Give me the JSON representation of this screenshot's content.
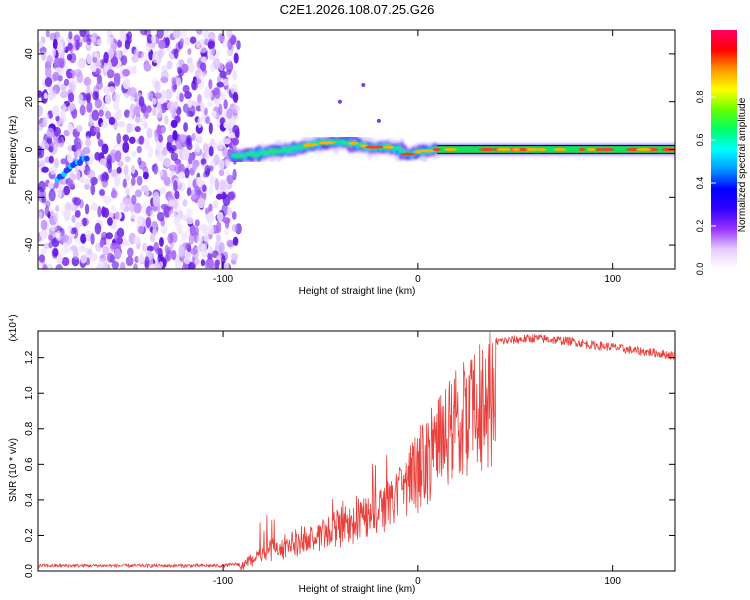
{
  "title": "C2E1.2026.108.07.25.G26",
  "chart_data": [
    {
      "type": "heatmap",
      "xlabel": "Height of straight line (km)",
      "ylabel": "Frequency (Hz)",
      "xlim": [
        -195,
        132
      ],
      "ylim": [
        -50,
        50
      ],
      "xticks": [
        -100,
        0,
        100
      ],
      "yticks": [
        -40,
        -20,
        0,
        20,
        40
      ],
      "colorbar": {
        "label": "Normalized spectral amplitude",
        "range": [
          0,
          1
        ],
        "ticks": [
          "0.0",
          "0.2",
          "0.4",
          "0.6",
          "0.8"
        ],
        "colors": [
          "#ffffff",
          "#e6ccff",
          "#9933ff",
          "#3300ff",
          "#0000ff",
          "#0099ff",
          "#00ffff",
          "#00ff66",
          "#66ff00",
          "#ffff00",
          "#ff9900",
          "#ff0000",
          "#ff0066"
        ]
      },
      "noise_region_x": [
        -195,
        -92
      ],
      "signal_track": {
        "x": [
          -95,
          -85,
          -75,
          -65,
          -55,
          -45,
          -35,
          -25,
          -15,
          -10,
          -5,
          0,
          10,
          20,
          40,
          60,
          80,
          100,
          132
        ],
        "y": [
          -3,
          -2,
          -1,
          0,
          2,
          3,
          3,
          1,
          1,
          0,
          -2,
          -1,
          0,
          0,
          0,
          0,
          0,
          0,
          0
        ]
      },
      "early_streak": {
        "x": [
          -185,
          -170
        ],
        "y": [
          -12,
          -3
        ]
      }
    },
    {
      "type": "line",
      "xlabel": "Height of straight line (km)",
      "ylabel": "SNR (10 * v/v)",
      "y_scale_label": "(x10⁴)",
      "xlim": [
        -195,
        132
      ],
      "ylim": [
        0,
        1.35
      ],
      "xticks": [
        -100,
        0,
        100
      ],
      "yticks": [
        "0.0",
        "0.2",
        "0.4",
        "0.6",
        "0.8",
        "1.0",
        "1.2"
      ],
      "color": "#e8413d",
      "series": [
        {
          "name": "SNR",
          "x": [
            -195,
            -150,
            -100,
            -92,
            -85,
            -80,
            -75,
            -70,
            -60,
            -50,
            -40,
            -30,
            -20,
            -15,
            -10,
            -5,
            0,
            5,
            10,
            15,
            20,
            25,
            30,
            35,
            40,
            50,
            60,
            70,
            80,
            90,
            100,
            110,
            120,
            132
          ],
          "y": [
            0.03,
            0.03,
            0.03,
            0.04,
            0.1,
            0.15,
            0.18,
            0.22,
            0.24,
            0.28,
            0.35,
            0.42,
            0.48,
            0.55,
            0.62,
            0.7,
            0.78,
            0.88,
            0.98,
            1.08,
            1.15,
            1.2,
            1.24,
            1.27,
            1.29,
            1.3,
            1.31,
            1.3,
            1.29,
            1.27,
            1.26,
            1.24,
            1.23,
            1.21
          ]
        }
      ]
    }
  ]
}
